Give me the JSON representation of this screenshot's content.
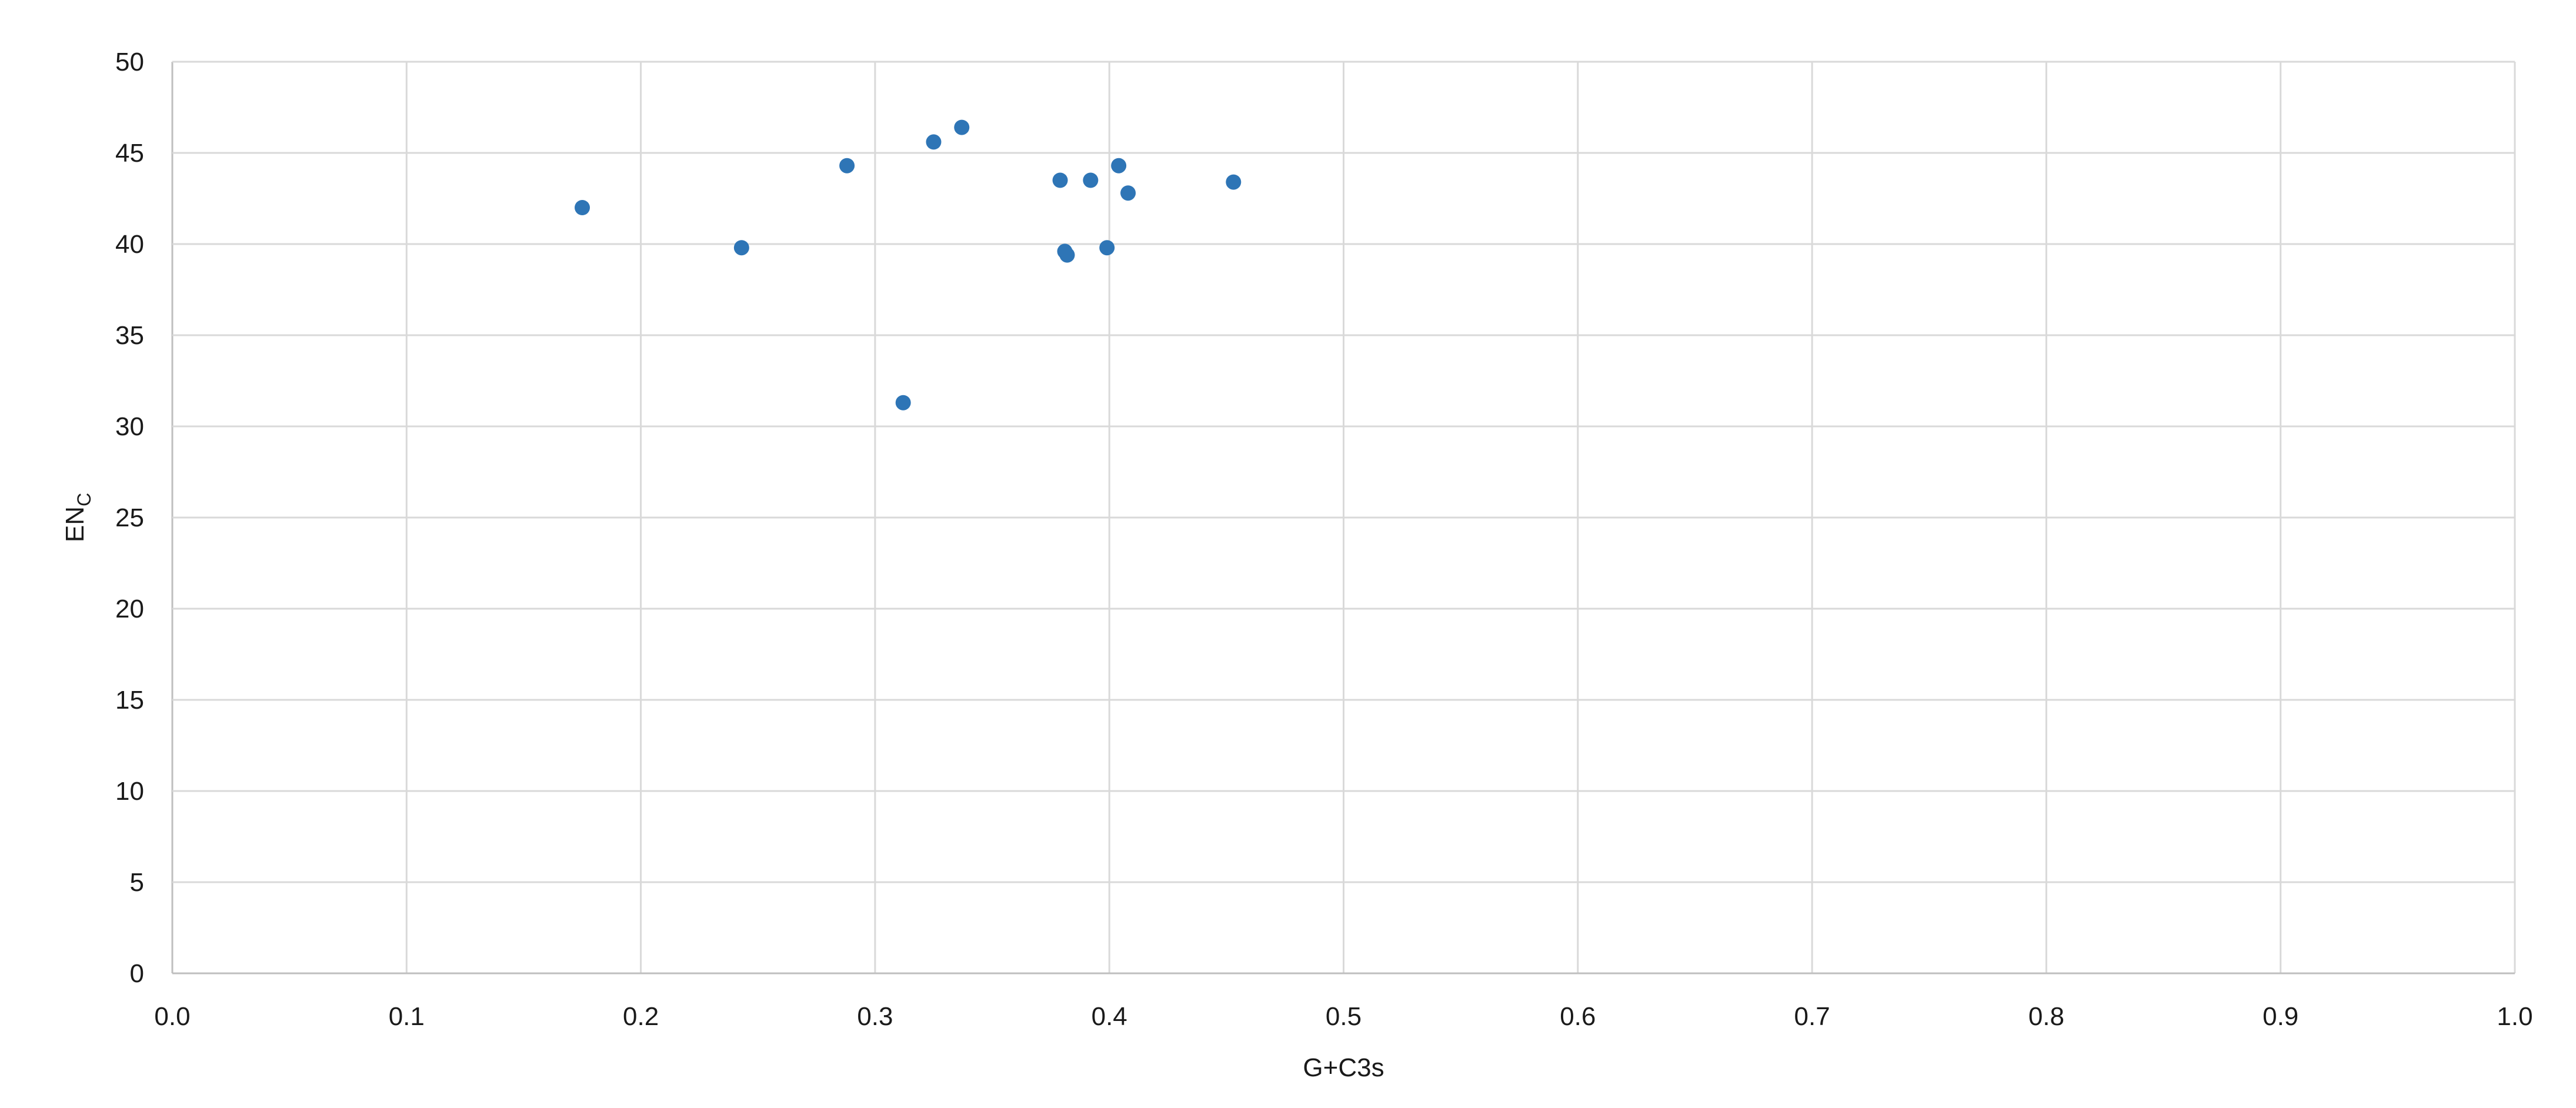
{
  "chart_data": {
    "type": "scatter",
    "title": "",
    "xlabel": "G+C3s",
    "ylabel_main": "EN",
    "ylabel_sub": "C",
    "xlim": [
      0,
      1
    ],
    "ylim": [
      0,
      50
    ],
    "x_ticks": [
      "0.0",
      "0.1",
      "0.2",
      "0.3",
      "0.4",
      "0.5",
      "0.6",
      "0.7",
      "0.8",
      "0.9",
      "1.0"
    ],
    "y_ticks": [
      "0",
      "5",
      "10",
      "15",
      "20",
      "25",
      "30",
      "35",
      "40",
      "45",
      "50"
    ],
    "grid": true,
    "legend": "none",
    "marker_color": "#2e75b6",
    "points": [
      {
        "x": 0.175,
        "y": 42.0
      },
      {
        "x": 0.243,
        "y": 39.8
      },
      {
        "x": 0.288,
        "y": 44.3
      },
      {
        "x": 0.312,
        "y": 31.3
      },
      {
        "x": 0.325,
        "y": 45.6
      },
      {
        "x": 0.337,
        "y": 46.4
      },
      {
        "x": 0.379,
        "y": 43.5
      },
      {
        "x": 0.381,
        "y": 39.6
      },
      {
        "x": 0.382,
        "y": 39.4
      },
      {
        "x": 0.392,
        "y": 43.5
      },
      {
        "x": 0.399,
        "y": 39.8
      },
      {
        "x": 0.404,
        "y": 44.3
      },
      {
        "x": 0.408,
        "y": 42.8
      },
      {
        "x": 0.453,
        "y": 43.4
      }
    ]
  }
}
